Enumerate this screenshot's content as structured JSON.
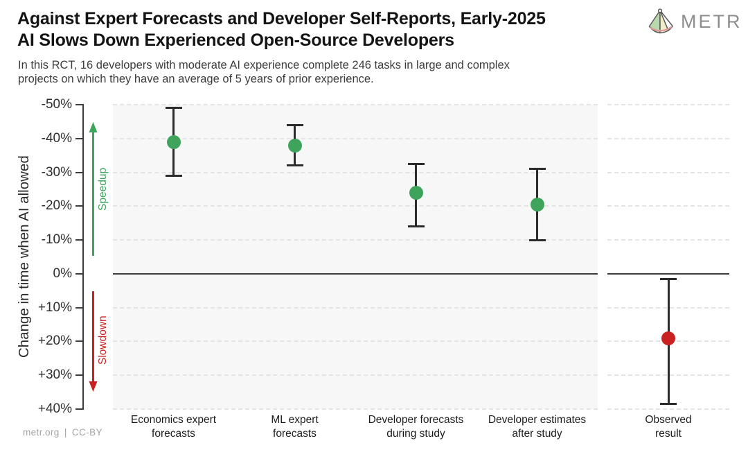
{
  "header": {
    "title_line1": "Against Expert Forecasts and Developer Self-Reports, Early-2025",
    "title_line2": "AI Slows Down Experienced Open-Source Developers",
    "subtitle_line1": "In this RCT, 16 developers with moderate AI experience complete 246 tasks in large and complex",
    "subtitle_line2": "projects on which they have an average of 5 years of prior experience.",
    "logo_text": "METR",
    "logo_icon": "metr-fan-icon"
  },
  "footer": {
    "credit": "metr.org | CC-BY"
  },
  "colors": {
    "speedup_green": "#3EA45C",
    "slowdown_red": "#C92020",
    "axis_dark": "#3D3D3D",
    "gridline_gray": "#E4E4E4",
    "main_panel_bg": "#F7F7F7",
    "errorbar_dark": "#2B2B2B",
    "logo_gray": "#8E8E8E"
  },
  "chart_data": {
    "type": "scatter",
    "title": "Against Expert Forecasts and Developer Self-Reports, Early-2025 AI Slows Down Experienced Open-Source Developers",
    "subtitle": "In this RCT, 16 developers with moderate AI experience complete 246 tasks in large and complex projects on which they have an average of 5 years of prior experience.",
    "ylabel": "Change in time when AI allowed",
    "xlabel": "",
    "ylim": [
      -50,
      40
    ],
    "y_axis_inverted": true,
    "grid": "horizontal dashed, solid dark line at 0%",
    "legend_position": "none",
    "y_ticks": [
      {
        "value": -50,
        "label": "-50%"
      },
      {
        "value": -40,
        "label": "-40%"
      },
      {
        "value": -30,
        "label": "-30%"
      },
      {
        "value": -20,
        "label": "-20%"
      },
      {
        "value": -10,
        "label": "-10%"
      },
      {
        "value": 0,
        "label": "0%"
      },
      {
        "value": 10,
        "label": "+10%"
      },
      {
        "value": 20,
        "label": "+20%"
      },
      {
        "value": 30,
        "label": "+30%"
      },
      {
        "value": 40,
        "label": "+40%"
      }
    ],
    "annotations": {
      "speedup_label": "Speedup",
      "slowdown_label": "Slowdown"
    },
    "series": [
      {
        "category": "Economics expert forecasts",
        "category_lines": [
          "Economics expert",
          "forecasts"
        ],
        "panel": "main",
        "x_frac": 0.125,
        "value": -39,
        "ci": [
          -49,
          -29
        ],
        "color": "#3EA45C"
      },
      {
        "category": "ML expert forecasts",
        "category_lines": [
          "ML expert",
          "forecasts"
        ],
        "panel": "main",
        "x_frac": 0.375,
        "value": -38,
        "ci": [
          -44,
          -32
        ],
        "color": "#3EA45C"
      },
      {
        "category": "Developer forecasts during study",
        "category_lines": [
          "Developer forecasts",
          "during study"
        ],
        "panel": "main",
        "x_frac": 0.625,
        "value": -24,
        "ci": [
          -32.5,
          -14
        ],
        "color": "#3EA45C"
      },
      {
        "category": "Developer estimates after study",
        "category_lines": [
          "Developer estimates",
          "after study"
        ],
        "panel": "main",
        "x_frac": 0.875,
        "value": -20.5,
        "ci": [
          -31,
          -10
        ],
        "color": "#3EA45C"
      },
      {
        "category": "Observed result",
        "category_lines": [
          "Observed",
          "result"
        ],
        "panel": "observed",
        "x_frac": 0.5,
        "value": 19,
        "ci": [
          1.5,
          38.5
        ],
        "color": "#C92020"
      }
    ],
    "units": "percent change in completion time when AI is allowed"
  }
}
